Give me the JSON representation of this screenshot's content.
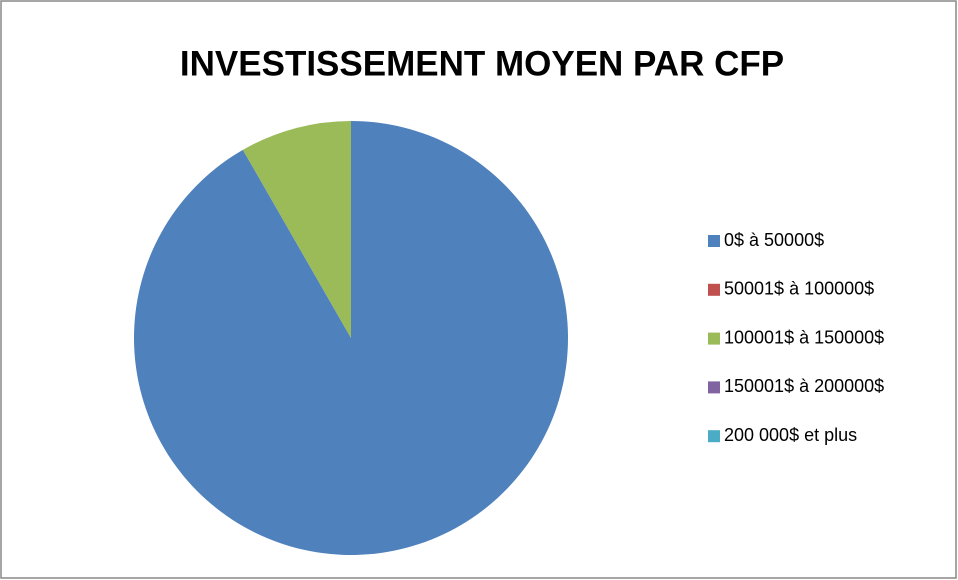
{
  "chart_data": {
    "type": "pie",
    "title": "INVESTISSEMENT MOYEN PAR CFP",
    "categories": [
      "0$ à 50000$",
      "50001$ à 100000$",
      "100001$ à 150000$",
      "150001$ à 200000$",
      "200 000$ et plus"
    ],
    "values": [
      91.7,
      0,
      8.3,
      0,
      0
    ],
    "colors": [
      "#4f81bd",
      "#c0504d",
      "#9bbb59",
      "#8064a2",
      "#4bacc6"
    ],
    "legend": "right"
  }
}
